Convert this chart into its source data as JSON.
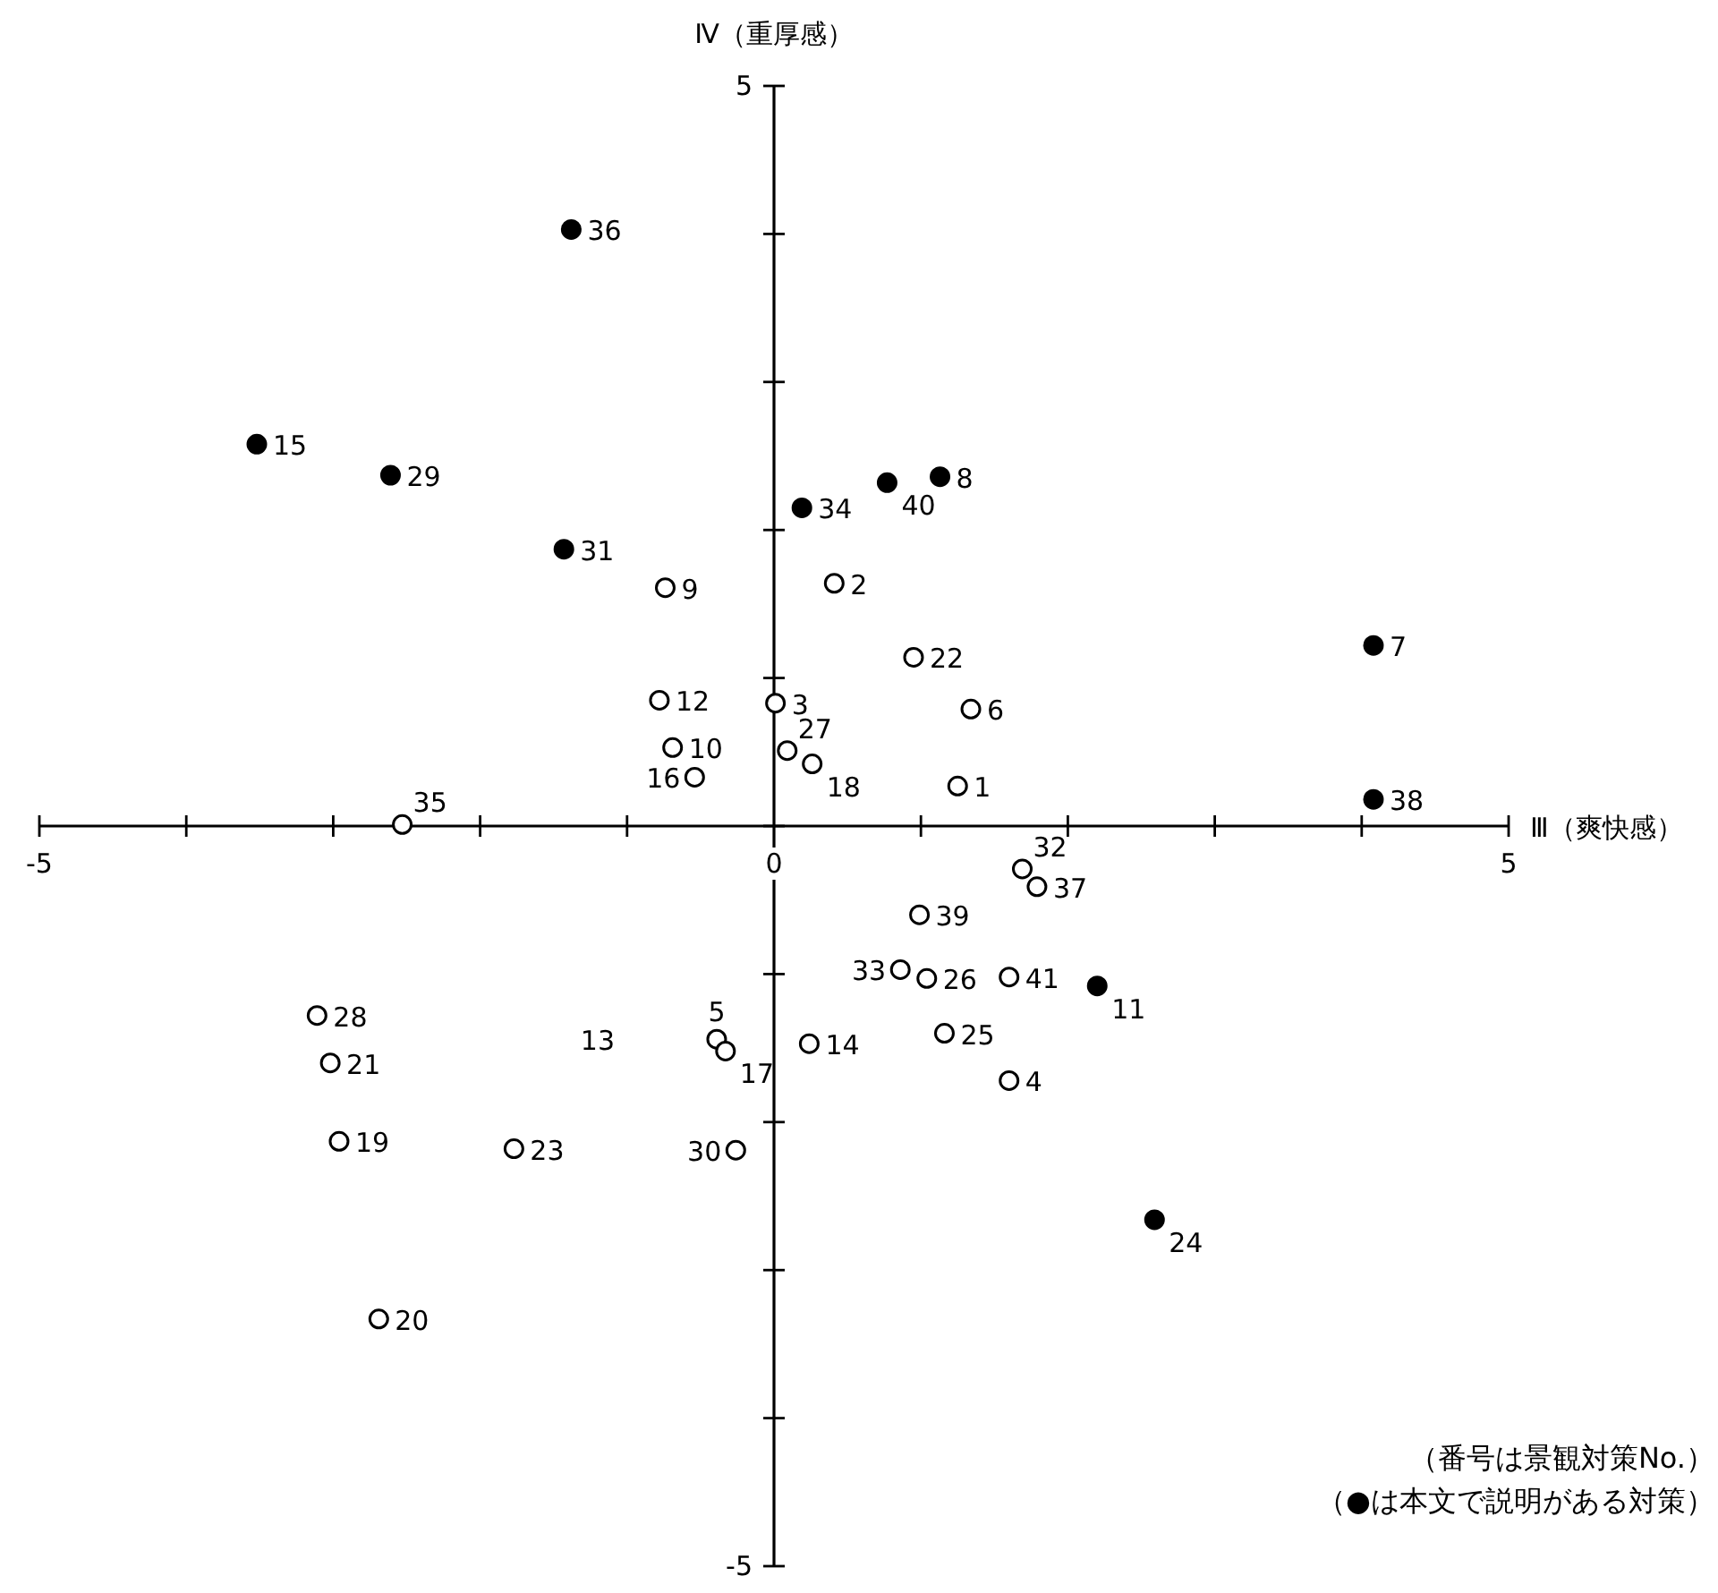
{
  "chart_data": {
    "type": "scatter",
    "xlabel": "Ⅲ（爽快感）",
    "ylabel": "Ⅳ（重厚感）",
    "xlim": [
      -5,
      5
    ],
    "ylim": [
      -5,
      5
    ],
    "xticks": [
      -5,
      {
        "value": -4,
        "label": null
      },
      {
        "value": -3,
        "label": null
      },
      {
        "value": -2,
        "label": null
      },
      {
        "value": -1,
        "label": null
      },
      0,
      {
        "value": 1,
        "label": null
      },
      {
        "value": 2,
        "label": null
      },
      {
        "value": 3,
        "label": null
      },
      {
        "value": 4,
        "label": null
      },
      5
    ],
    "yticks": [
      -5,
      {
        "value": -4,
        "label": null
      },
      {
        "value": -3,
        "label": null
      },
      {
        "value": -2,
        "label": null
      },
      {
        "value": -1,
        "label": null
      },
      {
        "value": 0,
        "label": null
      },
      {
        "value": 1,
        "label": null
      },
      {
        "value": 2,
        "label": null
      },
      {
        "value": 3,
        "label": null
      },
      {
        "value": 4,
        "label": null
      },
      5
    ],
    "marker": "circle",
    "series": [
      {
        "color": "#000000",
        "x": [
          -1.38,
          -3.52,
          -2.61,
          -1.43,
          0.19,
          0.77,
          1.13,
          4.08,
          4.08,
          2.2,
          2.59
        ],
        "values": [
          4.03,
          2.58,
          2.37,
          1.87,
          2.15,
          2.32,
          2.36,
          1.22,
          0.18,
          -1.08,
          -2.66
        ]
      },
      {
        "color": "#ffffff",
        "x": [
          -0.74,
          0.41,
          0.95,
          -0.78,
          0.01,
          1.34,
          -0.69,
          0.09,
          0.26,
          -0.54,
          1.25,
          -2.53,
          1.69,
          1.79,
          0.99,
          0.86,
          1.04,
          1.6,
          1.16,
          1.6,
          0.24,
          -0.39,
          -0.33,
          -3.11,
          -3.02,
          -2.96,
          -1.77,
          -0.26,
          -2.69
        ],
        "values": [
          1.61,
          1.64,
          1.14,
          0.85,
          0.83,
          0.79,
          0.53,
          0.51,
          0.42,
          0.33,
          0.27,
          0.01,
          -0.29,
          -0.41,
          -0.6,
          -0.97,
          -1.03,
          -1.02,
          -1.4,
          -1.72,
          -1.47,
          -1.44,
          -1.52,
          -1.28,
          -1.6,
          -2.13,
          -2.18,
          -2.19,
          -3.33
        ]
      }
    ],
    "annotations": [
      {
        "text": "36",
        "x": -1.38,
        "y": 4.03
      },
      {
        "text": "15",
        "x": -3.52,
        "y": 2.58
      },
      {
        "text": "29",
        "x": -2.61,
        "y": 2.37
      },
      {
        "text": "31",
        "x": -1.43,
        "y": 1.87
      },
      {
        "text": "34",
        "x": 0.19,
        "y": 2.15
      },
      {
        "text": "40",
        "x": 0.77,
        "y": 2.32
      },
      {
        "text": "8",
        "x": 1.13,
        "y": 2.36
      },
      {
        "text": "7",
        "x": 4.08,
        "y": 1.22
      },
      {
        "text": "38",
        "x": 4.08,
        "y": 0.18
      },
      {
        "text": "11",
        "x": 2.2,
        "y": -1.08
      },
      {
        "text": "24",
        "x": 2.59,
        "y": -2.66
      },
      {
        "text": "9",
        "x": -0.74,
        "y": 1.61
      },
      {
        "text": "2",
        "x": 0.41,
        "y": 1.64
      },
      {
        "text": "22",
        "x": 0.95,
        "y": 1.14
      },
      {
        "text": "12",
        "x": -0.78,
        "y": 0.85
      },
      {
        "text": "3",
        "x": 0.01,
        "y": 0.83
      },
      {
        "text": "6",
        "x": 1.34,
        "y": 0.79
      },
      {
        "text": "10",
        "x": -0.69,
        "y": 0.53
      },
      {
        "text": "27",
        "x": 0.09,
        "y": 0.51
      },
      {
        "text": "18",
        "x": 0.26,
        "y": 0.42
      },
      {
        "text": "16",
        "x": -0.54,
        "y": 0.33
      },
      {
        "text": "1",
        "x": 1.25,
        "y": 0.27
      },
      {
        "text": "35",
        "x": -2.53,
        "y": 0.01
      },
      {
        "text": "32",
        "x": 1.69,
        "y": -0.29
      },
      {
        "text": "37",
        "x": 1.79,
        "y": -0.41
      },
      {
        "text": "39",
        "x": 0.99,
        "y": -0.6
      },
      {
        "text": "33",
        "x": 0.86,
        "y": -0.97
      },
      {
        "text": "26",
        "x": 1.04,
        "y": -1.03
      },
      {
        "text": "41",
        "x": 1.6,
        "y": -1.02
      },
      {
        "text": "25",
        "x": 1.16,
        "y": -1.4
      },
      {
        "text": "4",
        "x": 1.6,
        "y": -1.72
      },
      {
        "text": "14",
        "x": 0.24,
        "y": -1.47
      },
      {
        "text": "5",
        "x": -0.39,
        "y": -1.44
      },
      {
        "text": "17",
        "x": -0.33,
        "y": -1.52
      },
      {
        "text": "28",
        "x": -3.11,
        "y": -1.28
      },
      {
        "text": "21",
        "x": -3.02,
        "y": -1.6
      },
      {
        "text": "19",
        "x": -2.96,
        "y": -2.13
      },
      {
        "text": "23",
        "x": -1.77,
        "y": -2.18
      },
      {
        "text": "30",
        "x": -0.26,
        "y": -2.19
      },
      {
        "text": "20",
        "x": -2.69,
        "y": -3.33
      },
      "13",
      "（番号は景観対策No.）",
      "（●は本文で説明がある対策）"
    ]
  }
}
